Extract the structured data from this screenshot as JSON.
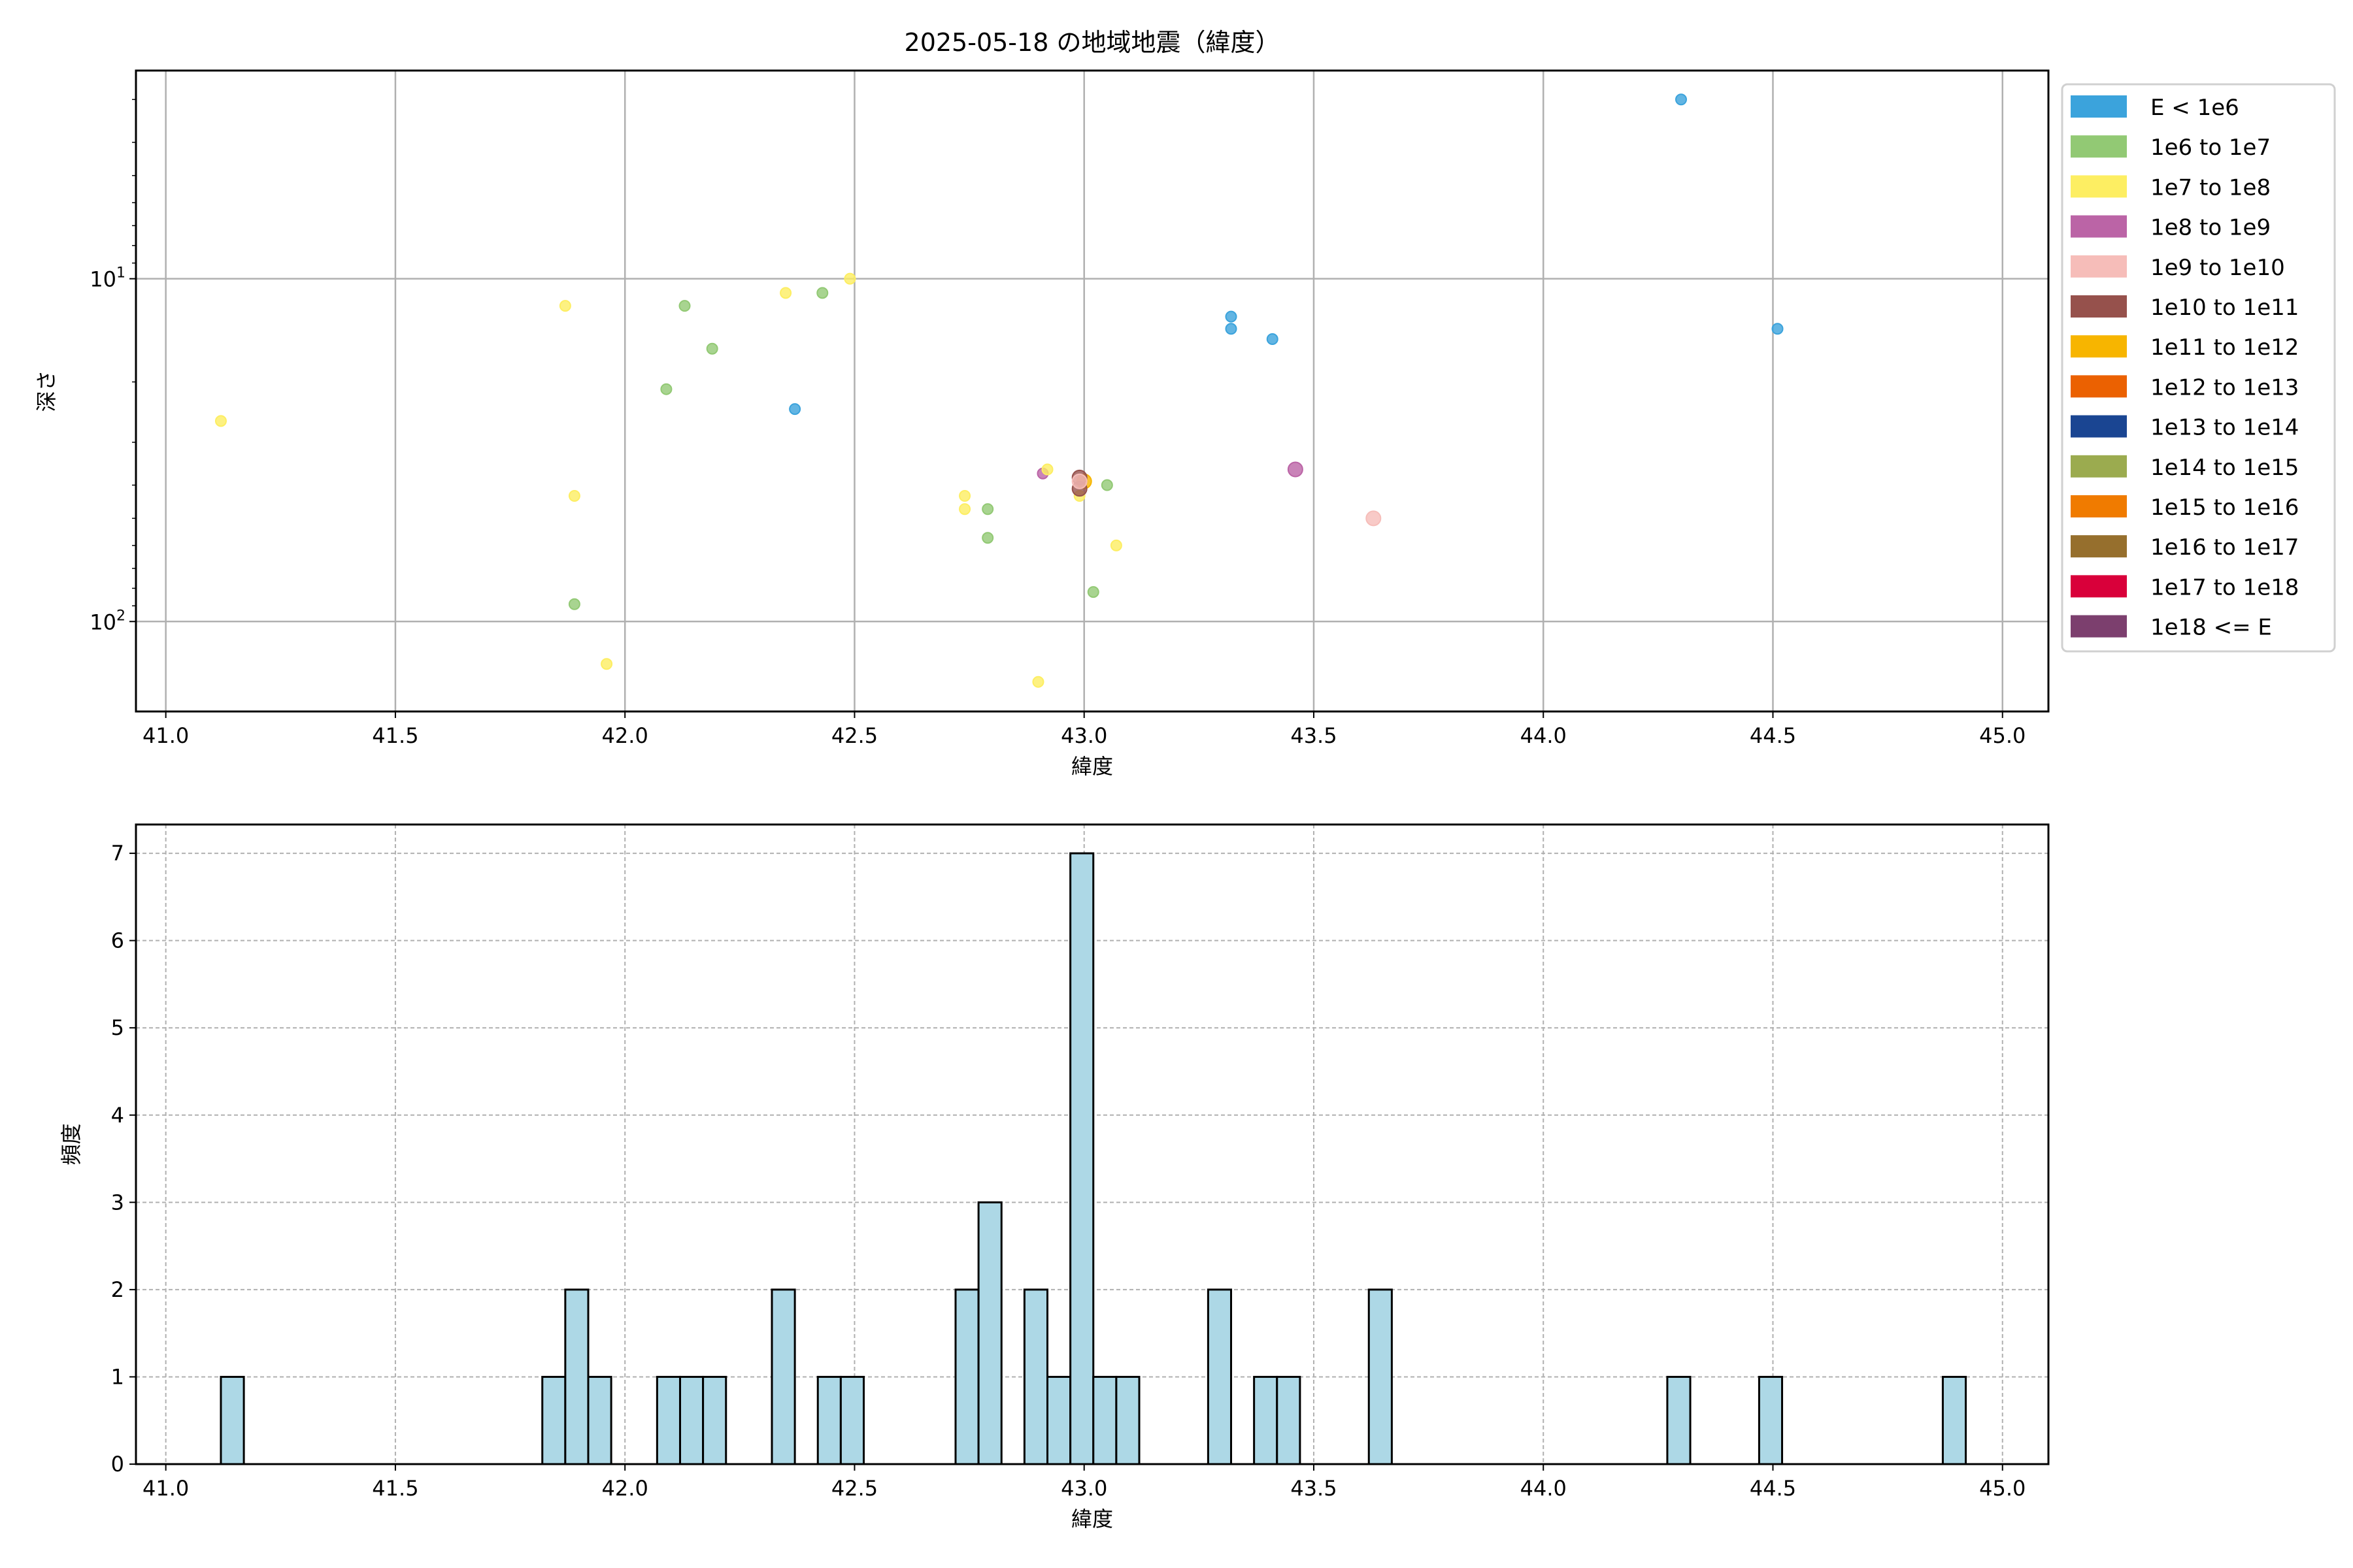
{
  "chart_data": [
    {
      "type": "scatter",
      "title": "2025-05-18 の地域地震（緯度）",
      "xlabel": "緯度",
      "ylabel": "深さ",
      "xlim": [
        40.935,
        45.1
      ],
      "ylim": [
        183,
        2.47
      ],
      "yscale": "log",
      "y_inverted": true,
      "grid": true,
      "xticks": [
        41.0,
        41.5,
        42.0,
        42.5,
        43.0,
        43.5,
        44.0,
        44.5,
        45.0
      ],
      "xtick_labels": [
        "41.0",
        "41.5",
        "42.0",
        "42.5",
        "43.0",
        "43.5",
        "44.0",
        "44.5",
        "45.0"
      ],
      "yticks": [
        10,
        100
      ],
      "ytick_labels": [
        {
          "base": "10",
          "exp": "1"
        },
        {
          "base": "10",
          "exp": "2"
        }
      ],
      "legend_placement": "outside-right",
      "legend": [
        {
          "label": "E < 1e6",
          "color": "#3ba3dc"
        },
        {
          "label": "1e6 to 1e7",
          "color": "#92c974"
        },
        {
          "label": "1e7 to 1e8",
          "color": "#fdee62"
        },
        {
          "label": "1e8 to 1e9",
          "color": "#bb64a6"
        },
        {
          "label": "1e9 to 1e10",
          "color": "#f6bdb9"
        },
        {
          "label": "1e10 to 1e11",
          "color": "#96514c"
        },
        {
          "label": "1e11 to 1e12",
          "color": "#f7b500"
        },
        {
          "label": "1e12 to 1e13",
          "color": "#eb6101"
        },
        {
          "label": "1e13 to 1e14",
          "color": "#1a4592"
        },
        {
          "label": "1e14 to 1e15",
          "color": "#9bab4f"
        },
        {
          "label": "1e15 to 1e16",
          "color": "#f07b00"
        },
        {
          "label": "1e16 to 1e17",
          "color": "#966f2d"
        },
        {
          "label": "1e17 to 1e18",
          "color": "#d9003a"
        },
        {
          "label": "1e18 <= E",
          "color": "#7c3f6e"
        }
      ],
      "points": [
        {
          "lat": 44.3,
          "depth": 3.0,
          "cls": 0
        },
        {
          "lat": 44.51,
          "depth": 14,
          "cls": 0
        },
        {
          "lat": 43.32,
          "depth": 12.9,
          "cls": 0
        },
        {
          "lat": 43.32,
          "depth": 14,
          "cls": 0
        },
        {
          "lat": 43.41,
          "depth": 15,
          "cls": 0
        },
        {
          "lat": 42.37,
          "depth": 24,
          "cls": 0
        },
        {
          "lat": 41.12,
          "depth": 26,
          "cls": 2
        },
        {
          "lat": 41.87,
          "depth": 12,
          "cls": 2
        },
        {
          "lat": 42.13,
          "depth": 12,
          "cls": 1
        },
        {
          "lat": 42.35,
          "depth": 11,
          "cls": 2
        },
        {
          "lat": 42.43,
          "depth": 11,
          "cls": 1
        },
        {
          "lat": 42.49,
          "depth": 10,
          "cls": 2
        },
        {
          "lat": 42.19,
          "depth": 16,
          "cls": 1
        },
        {
          "lat": 42.09,
          "depth": 21,
          "cls": 1
        },
        {
          "lat": 41.89,
          "depth": 43,
          "cls": 2
        },
        {
          "lat": 41.89,
          "depth": 89,
          "cls": 1
        },
        {
          "lat": 41.96,
          "depth": 133,
          "cls": 2
        },
        {
          "lat": 42.74,
          "depth": 43,
          "cls": 2
        },
        {
          "lat": 42.74,
          "depth": 47,
          "cls": 2
        },
        {
          "lat": 42.79,
          "depth": 47,
          "cls": 1
        },
        {
          "lat": 42.79,
          "depth": 57,
          "cls": 1
        },
        {
          "lat": 42.9,
          "depth": 150,
          "cls": 2
        },
        {
          "lat": 43.02,
          "depth": 82,
          "cls": 1
        },
        {
          "lat": 43.07,
          "depth": 60,
          "cls": 2
        },
        {
          "lat": 43.05,
          "depth": 40,
          "cls": 1
        },
        {
          "lat": 42.91,
          "depth": 37,
          "cls": 3
        },
        {
          "lat": 42.92,
          "depth": 36,
          "cls": 2
        },
        {
          "lat": 42.99,
          "depth": 43,
          "cls": 2
        },
        {
          "lat": 43.0,
          "depth": 39,
          "cls": 6,
          "big": true
        },
        {
          "lat": 42.99,
          "depth": 38,
          "cls": 5,
          "big": true
        },
        {
          "lat": 42.99,
          "depth": 41,
          "cls": 5,
          "big": true
        },
        {
          "lat": 42.99,
          "depth": 39,
          "cls": 4,
          "big": true
        },
        {
          "lat": 43.46,
          "depth": 36,
          "cls": 3,
          "big": true
        },
        {
          "lat": 43.63,
          "depth": 50,
          "cls": 4,
          "big": true
        }
      ]
    },
    {
      "type": "bar",
      "subtype": "histogram",
      "xlabel": "緯度",
      "ylabel": "頻度",
      "xlim": [
        40.935,
        45.1
      ],
      "ylim": [
        0,
        7.33
      ],
      "grid": true,
      "grid_style": "dashed",
      "bar_color": "#add8e6",
      "edge_color": "#000000",
      "bin_width": 0.05,
      "xticks": [
        41.0,
        41.5,
        42.0,
        42.5,
        43.0,
        43.5,
        44.0,
        44.5,
        45.0
      ],
      "xtick_labels": [
        "41.0",
        "41.5",
        "42.0",
        "42.5",
        "43.0",
        "43.5",
        "44.0",
        "44.5",
        "45.0"
      ],
      "yticks": [
        0,
        1,
        2,
        3,
        4,
        5,
        6,
        7
      ],
      "ytick_labels": [
        "0",
        "1",
        "2",
        "3",
        "4",
        "5",
        "6",
        "7"
      ],
      "bins": [
        {
          "left": 41.12,
          "count": 1
        },
        {
          "left": 41.82,
          "count": 1
        },
        {
          "left": 41.87,
          "count": 2
        },
        {
          "left": 41.92,
          "count": 1
        },
        {
          "left": 42.07,
          "count": 1
        },
        {
          "left": 42.12,
          "count": 1
        },
        {
          "left": 42.17,
          "count": 1
        },
        {
          "left": 42.32,
          "count": 2
        },
        {
          "left": 42.42,
          "count": 1
        },
        {
          "left": 42.47,
          "count": 1
        },
        {
          "left": 42.72,
          "count": 2
        },
        {
          "left": 42.77,
          "count": 3
        },
        {
          "left": 42.87,
          "count": 2
        },
        {
          "left": 42.92,
          "count": 1
        },
        {
          "left": 42.97,
          "count": 7
        },
        {
          "left": 43.02,
          "count": 1
        },
        {
          "left": 43.07,
          "count": 1
        },
        {
          "left": 43.27,
          "count": 2
        },
        {
          "left": 43.37,
          "count": 1
        },
        {
          "left": 43.42,
          "count": 1
        },
        {
          "left": 43.62,
          "count": 2
        },
        {
          "left": 44.27,
          "count": 1
        },
        {
          "left": 44.47,
          "count": 1
        },
        {
          "left": 44.87,
          "count": 1
        }
      ]
    }
  ]
}
